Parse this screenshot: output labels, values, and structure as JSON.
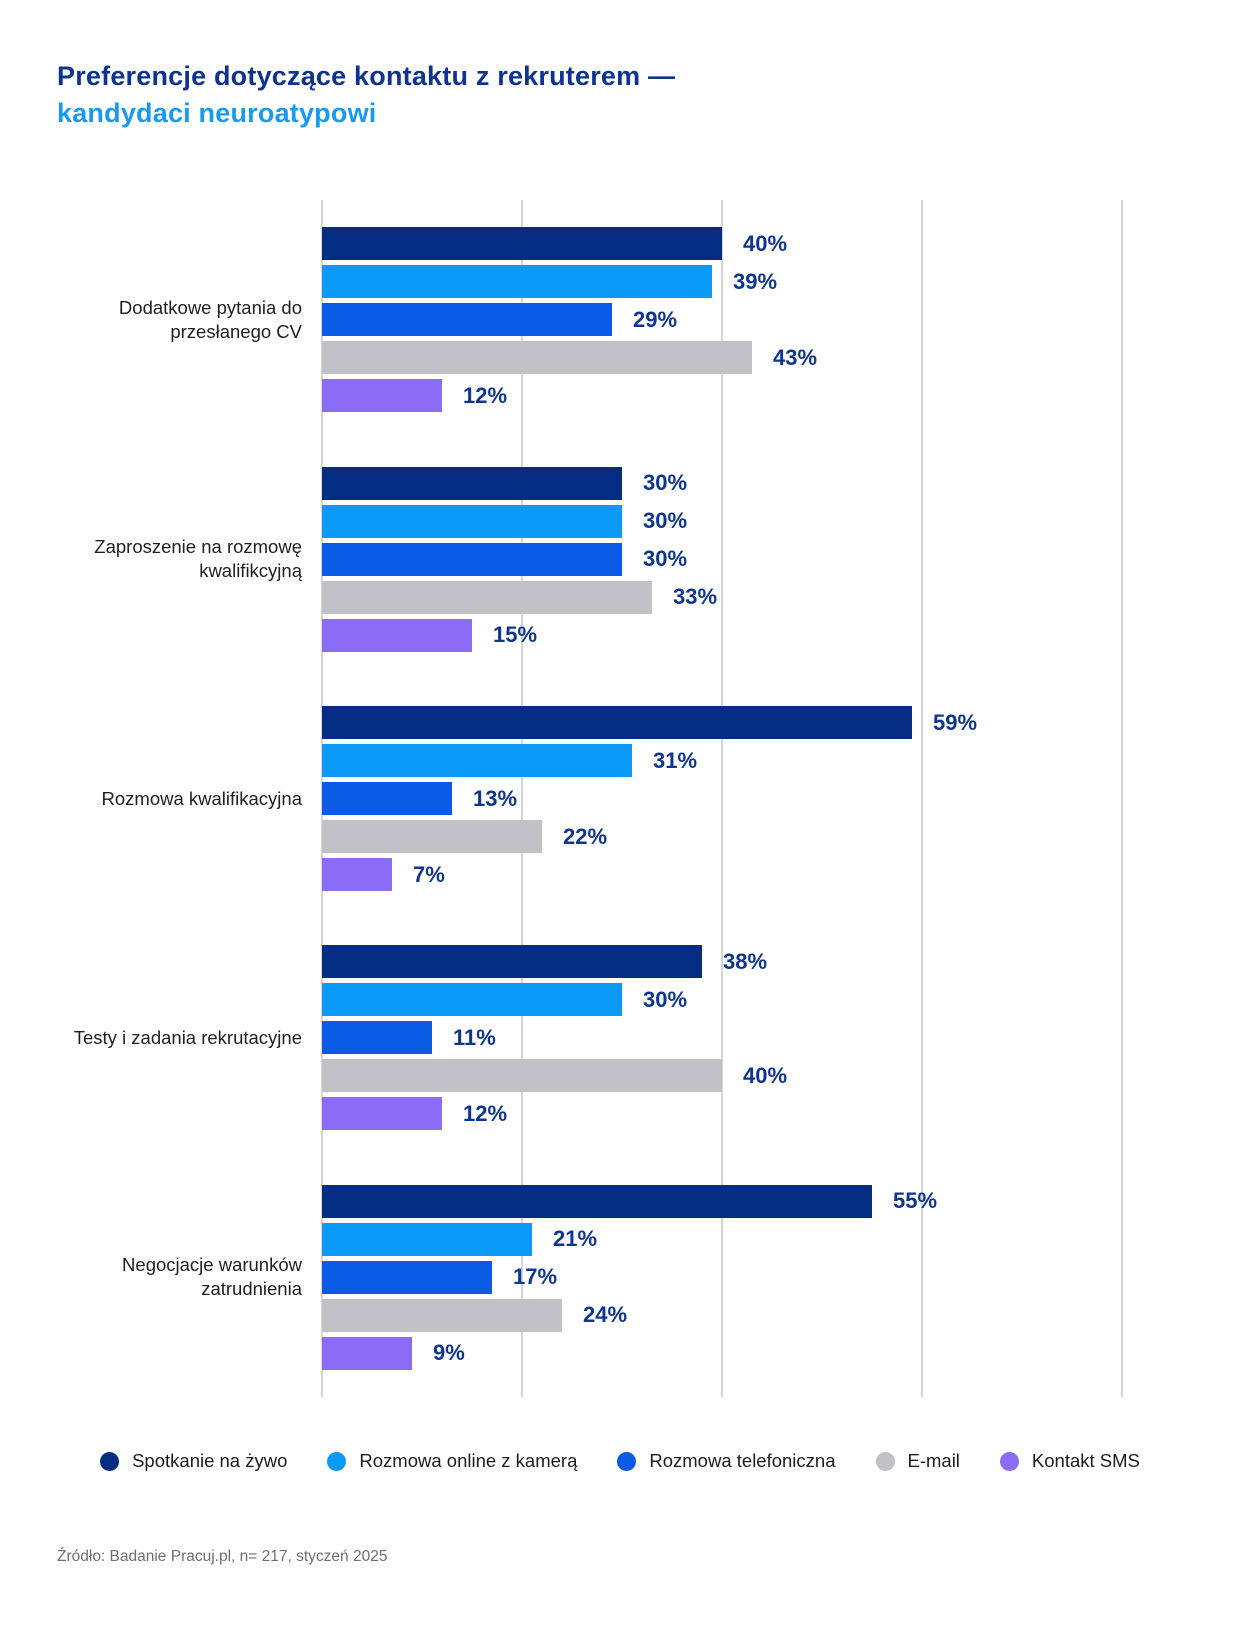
{
  "title": {
    "line1": "Preferencje dotyczące kontaktu z rekruterem —",
    "line2": "kandydaci neuroatypowi"
  },
  "chart_data": {
    "type": "bar",
    "orientation": "horizontal",
    "title": "Preferencje dotyczące kontaktu z rekruterem — kandydaci neuroatypowi",
    "xlabel": "",
    "ylabel": "",
    "xlim": [
      0,
      80
    ],
    "grid": true,
    "gridlines_percent": [
      0,
      20,
      40,
      60,
      80
    ],
    "legend_position": "bottom",
    "value_suffix": "%",
    "categories": [
      "Dodatkowe pytania do przesłanego CV",
      "Zaproszenie na rozmowę kwalifikcyjną",
      "Rozmowa kwalifikacyjna",
      "Testy i zadania rekrutacyjne",
      "Negocjacje warunków zatrudnienia"
    ],
    "series": [
      {
        "name": "Spotkanie na żywo",
        "color": "#032c82",
        "values": [
          40,
          30,
          59,
          38,
          55
        ]
      },
      {
        "name": "Rozmowa online z kamerą",
        "color": "#0c9af8",
        "values": [
          39,
          30,
          31,
          30,
          21
        ]
      },
      {
        "name": "Rozmowa telefoniczna",
        "color": "#0b5be4",
        "values": [
          29,
          30,
          13,
          11,
          17
        ]
      },
      {
        "name": "E-mail",
        "color": "#c2c1c5",
        "values": [
          43,
          33,
          22,
          40,
          24
        ]
      },
      {
        "name": "Kontakt SMS",
        "color": "#8b6cf6",
        "values": [
          12,
          15,
          7,
          12,
          9
        ]
      }
    ]
  },
  "colors": {
    "title_primary": "#0e3390",
    "title_accent": "#189af3",
    "value_label": "#0e3591",
    "category_text": "#1f1e21",
    "gridline": "#d5d4d8",
    "source_text": "#6f6e73",
    "background": "#ffffff"
  },
  "footer": {
    "source": "Źródło: Badanie Pracuj.pl, n= 217, styczeń 2025"
  }
}
